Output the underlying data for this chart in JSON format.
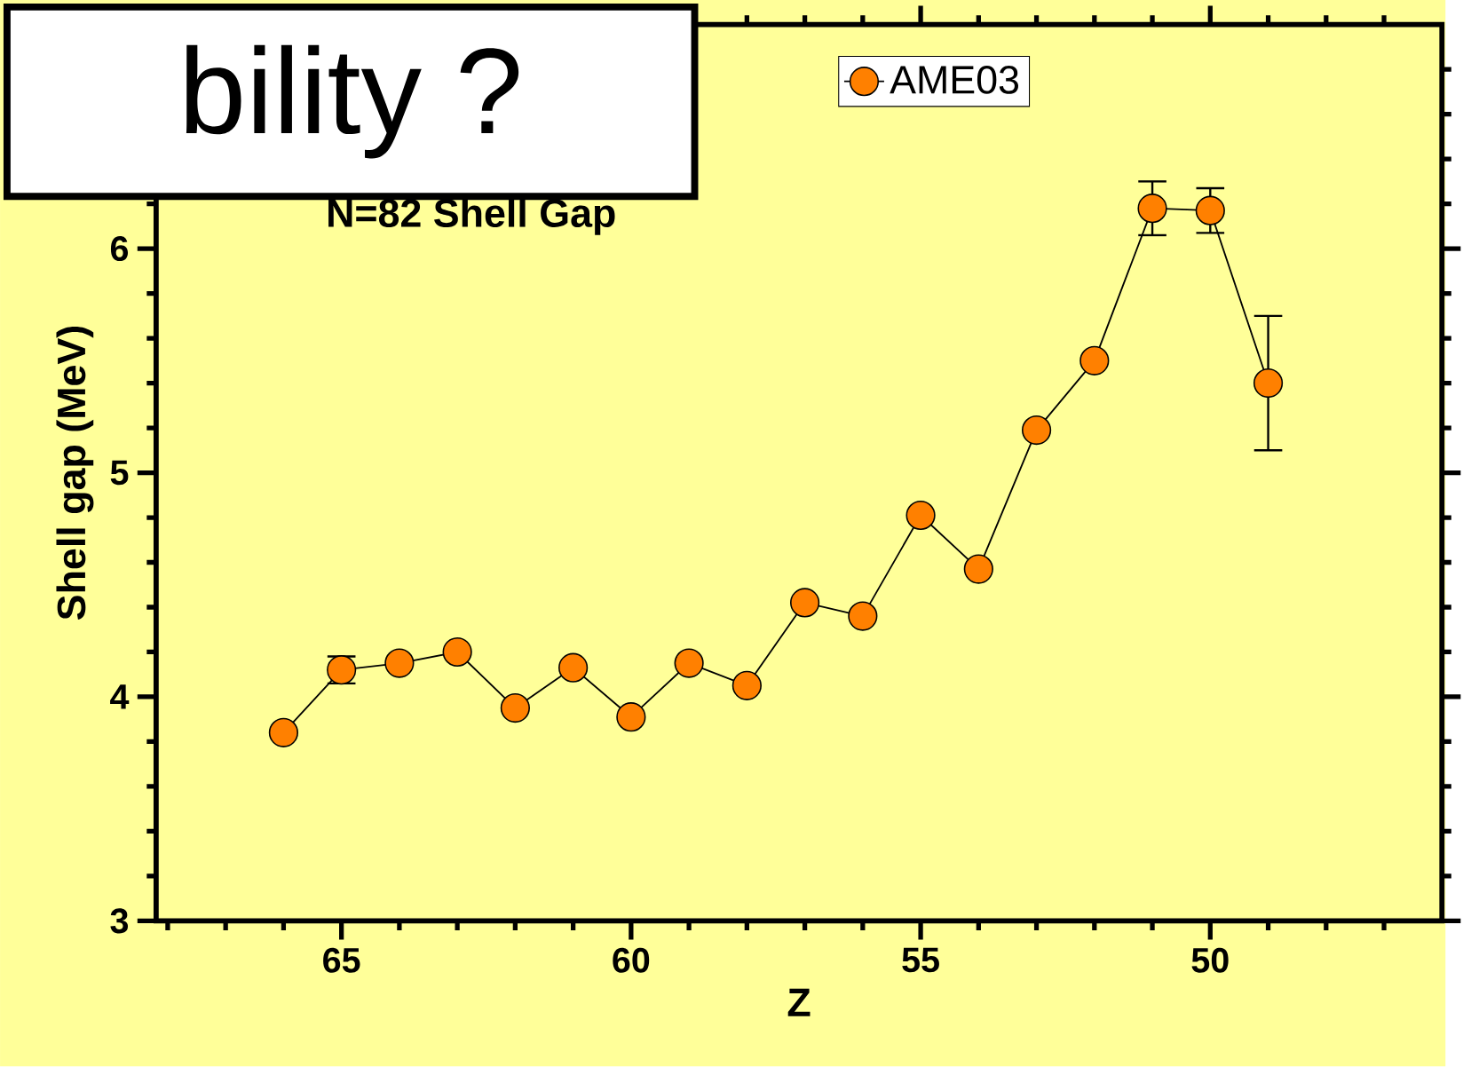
{
  "chart_data": {
    "type": "line",
    "title": "N=82 Shell Gap",
    "xlabel": "Z",
    "ylabel": "Shell gap (MeV)",
    "annotations": [
      "bility ?"
    ],
    "x": [
      66,
      65,
      64,
      63,
      62,
      61,
      60,
      59,
      58,
      57,
      56,
      55,
      54,
      53,
      52,
      51,
      50,
      49
    ],
    "series": [
      {
        "name": "AME03",
        "color": "#ff8000",
        "marker": "circle",
        "line_style": "solid",
        "values": [
          3.84,
          4.12,
          4.15,
          4.2,
          3.95,
          4.13,
          3.91,
          4.15,
          4.05,
          4.42,
          4.36,
          4.81,
          4.57,
          5.19,
          5.5,
          6.18,
          6.17,
          5.4
        ],
        "errors": [
          null,
          0.06,
          null,
          null,
          null,
          null,
          null,
          null,
          null,
          null,
          null,
          null,
          null,
          null,
          null,
          0.12,
          0.1,
          0.3
        ]
      }
    ],
    "xlim": [
      68.2,
      46
    ],
    "ylim": [
      3,
      7
    ],
    "xticks": [
      {
        "value": 68,
        "label": null
      },
      {
        "value": 67,
        "label": null
      },
      {
        "value": 66,
        "label": null
      },
      65,
      {
        "value": 64,
        "label": null
      },
      {
        "value": 63,
        "label": null
      },
      {
        "value": 62,
        "label": null
      },
      {
        "value": 61,
        "label": null
      },
      60,
      {
        "value": 59,
        "label": null
      },
      {
        "value": 58,
        "label": null
      },
      {
        "value": 57,
        "label": null
      },
      {
        "value": 56,
        "label": null
      },
      55,
      {
        "value": 54,
        "label": null
      },
      {
        "value": 53,
        "label": null
      },
      {
        "value": 52,
        "label": null
      },
      {
        "value": 51,
        "label": null
      },
      50,
      {
        "value": 49,
        "label": null
      },
      {
        "value": 48,
        "label": null
      },
      {
        "value": 47,
        "label": null
      }
    ],
    "yticks": [
      3,
      {
        "value": 3.2,
        "label": null
      },
      {
        "value": 3.4,
        "label": null
      },
      {
        "value": 3.6,
        "label": null
      },
      {
        "value": 3.8,
        "label": null
      },
      4,
      {
        "value": 4.2,
        "label": null
      },
      {
        "value": 4.4,
        "label": null
      },
      {
        "value": 4.6,
        "label": null
      },
      {
        "value": 4.8,
        "label": null
      },
      5,
      {
        "value": 5.2,
        "label": null
      },
      {
        "value": 5.4,
        "label": null
      },
      {
        "value": 5.6,
        "label": null
      },
      {
        "value": 5.8,
        "label": null
      },
      6,
      {
        "value": 6.2,
        "label": null
      },
      {
        "value": 6.4,
        "label": null
      },
      {
        "value": 6.6,
        "label": null
      },
      {
        "value": 6.8,
        "label": null
      }
    ],
    "legend": "top",
    "grid": false
  }
}
